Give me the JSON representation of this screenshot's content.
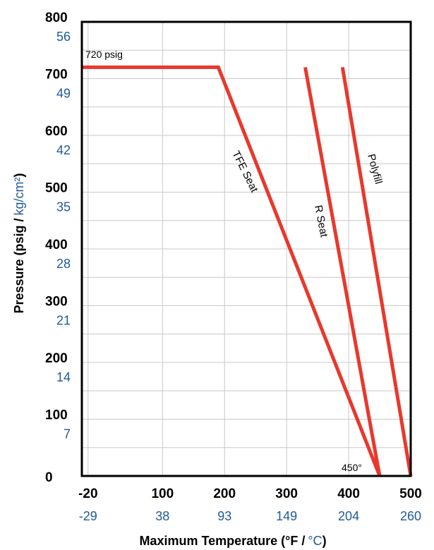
{
  "chart_data": {
    "type": "line",
    "xlabel_primary": "Maximum Temperature (°F /",
    "xlabel_secondary": "°C",
    "xlabel_close": ")",
    "ylabel_primary": "Pressure (psig /",
    "ylabel_secondary": "kg/cm²",
    "ylabel_close": ")",
    "xlim": [
      -30,
      500
    ],
    "ylim": [
      0,
      800
    ],
    "grid": true,
    "x_ticks": [
      {
        "f": "-20",
        "c": "-29",
        "v": -20
      },
      {
        "f": "100",
        "c": "38",
        "v": 100
      },
      {
        "f": "200",
        "c": "93",
        "v": 200
      },
      {
        "f": "300",
        "c": "149",
        "v": 300
      },
      {
        "f": "400",
        "c": "204",
        "v": 400
      },
      {
        "f": "500",
        "c": "260",
        "v": 500
      }
    ],
    "y_ticks": [
      {
        "psig": "800",
        "kg": "56",
        "v": 800
      },
      {
        "psig": "700",
        "kg": "49",
        "v": 700
      },
      {
        "psig": "600",
        "kg": "42",
        "v": 600
      },
      {
        "psig": "500",
        "kg": "35",
        "v": 500
      },
      {
        "psig": "400",
        "kg": "28",
        "v": 400
      },
      {
        "psig": "300",
        "kg": "21",
        "v": 300
      },
      {
        "psig": "200",
        "kg": "14",
        "v": 200
      },
      {
        "psig": "100",
        "kg": "7",
        "v": 100
      },
      {
        "psig": "0",
        "kg": "",
        "v": 0
      }
    ],
    "series": [
      {
        "name": "TFE Seat",
        "color": "#e8382d",
        "x": [
          -30,
          190,
          450
        ],
        "y": [
          720,
          720,
          0
        ]
      },
      {
        "name": "R Seat",
        "color": "#e8382d",
        "x": [
          330,
          450
        ],
        "y": [
          720,
          0
        ]
      },
      {
        "name": "Polyfill",
        "color": "#e8382d",
        "x": [
          390,
          500
        ],
        "y": [
          720,
          0
        ]
      }
    ],
    "annotations": [
      {
        "id": "pressure-limit",
        "text": "720 psig"
      },
      {
        "id": "temp-limit",
        "text": "450°"
      }
    ]
  }
}
